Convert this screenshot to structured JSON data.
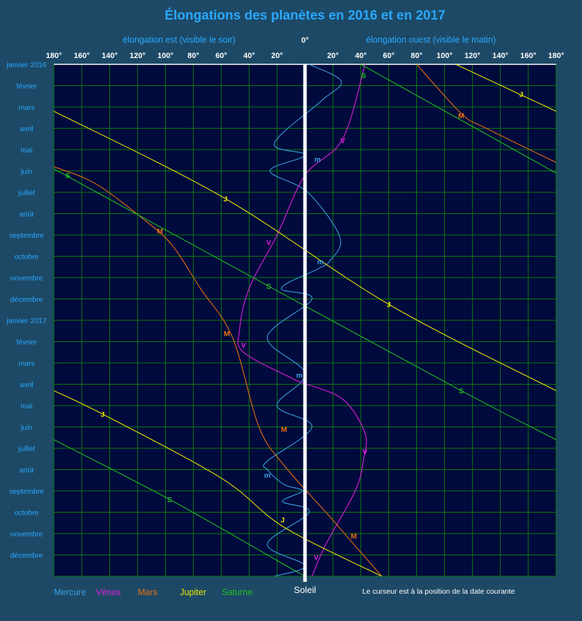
{
  "chart_data": {
    "type": "line",
    "title": "Élongations des planètes en 2016 et en 2017",
    "xlabel_left": "élongation est (visible le soir)",
    "xlabel_center": "0°",
    "xlabel_right": "élongation ouest (visible le matin)",
    "x_ticks": [
      "180°",
      "160°",
      "140°",
      "120°",
      "100°",
      "80°",
      "60°",
      "40°",
      "20°",
      "20°",
      "40°",
      "60°",
      "80°",
      "100°",
      "120°",
      "140°",
      "160°",
      "180°"
    ],
    "xlim": [
      -180,
      180
    ],
    "y_ticks": [
      "janvier 2016",
      "février",
      "mars",
      "avril",
      "mai",
      "juin",
      "juillet",
      "août",
      "septembre",
      "octobre",
      "novembre",
      "décembre",
      "janvier 2017",
      "février",
      "mars",
      "avril",
      "mai",
      "juin",
      "juillet",
      "août",
      "septembre",
      "octobre",
      "novembre",
      "décembre"
    ],
    "ylim_months": [
      0,
      24
    ],
    "grid": true,
    "sun_label": "Soleil",
    "footnote": "Le curseur est à la position de la date courante",
    "colors": {
      "background": "#1d4966",
      "plot": "#000a3c",
      "grid": "#0c7a0c",
      "title": "#2aa8ff",
      "axis_text": "#2aa8ff",
      "tick_text": "#ffffff",
      "sun": "#ffffff",
      "mercury": "#3aa0e0",
      "venus": "#e020e0",
      "mars": "#e87010",
      "jupiter": "#e8e800",
      "saturn": "#20c020"
    },
    "series": [
      {
        "key": "mercury",
        "name": "Mercure",
        "marker": "m",
        "color": "#3aa0e0",
        "points": [
          [
            3,
            0
          ],
          [
            26,
            0.8
          ],
          [
            12,
            1.7
          ],
          [
            -22,
            3.7
          ],
          [
            0,
            4.25
          ],
          [
            -25,
            5
          ],
          [
            2,
            6
          ],
          [
            25,
            8.1
          ],
          [
            18,
            9.2
          ],
          [
            9,
            9.6
          ],
          [
            -17,
            10.5
          ],
          [
            5,
            11
          ],
          [
            -27,
            12.8
          ],
          [
            0,
            14.5
          ],
          [
            -20,
            16
          ],
          [
            5,
            17
          ],
          [
            -27,
            18.6
          ],
          [
            -27,
            19
          ],
          [
            -15,
            19.7
          ],
          [
            -2,
            20
          ],
          [
            -16,
            20.5
          ],
          [
            3,
            21
          ],
          [
            -27,
            22.5
          ],
          [
            0,
            23.5
          ],
          [
            -22,
            24
          ]
        ],
        "markers": [
          [
            9,
            4.45
          ],
          [
            11,
            9.25
          ],
          [
            -4,
            14.55
          ],
          [
            -27,
            19.25
          ]
        ]
      },
      {
        "key": "venus",
        "name": "Vénus",
        "marker": "V",
        "color": "#e020e0",
        "points": [
          [
            43,
            0
          ],
          [
            27,
            3.5
          ],
          [
            0,
            5.2
          ],
          [
            -20,
            8
          ],
          [
            -40,
            10.5
          ],
          [
            -47,
            12.5
          ],
          [
            -44,
            13.5
          ],
          [
            -10,
            14.7
          ],
          [
            -3,
            14.9
          ],
          [
            27,
            15.7
          ],
          [
            43,
            17.3
          ],
          [
            42,
            18.5
          ],
          [
            36,
            20
          ],
          [
            15,
            22.5
          ],
          [
            5,
            24
          ]
        ],
        "markers": [
          [
            27,
            3.55
          ],
          [
            -26,
            8.35
          ],
          [
            -44,
            13.15
          ],
          [
            43,
            18.15
          ],
          [
            8,
            23.1
          ]
        ]
      },
      {
        "key": "mars",
        "name": "Mars",
        "marker": "M",
        "color": "#e87010",
        "points": [
          [
            -180,
            4.8
          ],
          [
            -150,
            5.6
          ],
          [
            -115,
            7.3
          ],
          [
            -95,
            8.5
          ],
          [
            -75,
            10.5
          ],
          [
            -52,
            12.8
          ],
          [
            -33,
            17
          ],
          [
            -15,
            18.8
          ],
          [
            15,
            21
          ],
          [
            35,
            22.5
          ],
          [
            55,
            24
          ]
        ],
        "markers": [
          [
            -104,
            7.8
          ],
          [
            -56,
            12.6
          ],
          [
            -15,
            17.1
          ],
          [
            35,
            22.1
          ]
        ]
      },
      {
        "key": "mars",
        "name": "Mars",
        "marker": "M",
        "color": "#e87010",
        "points": [
          [
            80,
            0
          ],
          [
            112,
            2.3
          ],
          [
            130,
            3
          ],
          [
            180,
            4.6
          ]
        ],
        "markers": [
          [
            112,
            2.4
          ]
        ]
      },
      {
        "key": "jupiter",
        "name": "Jupiter",
        "marker": "J",
        "color": "#e8e800",
        "points": [
          [
            -180,
            2.2
          ],
          [
            -57,
            6.3
          ],
          [
            60,
            11.25
          ],
          [
            180,
            15.3
          ]
        ],
        "markers": [
          [
            -57,
            6.3
          ],
          [
            60,
            11.25
          ]
        ]
      },
      {
        "key": "jupiter",
        "name": "Jupiter",
        "marker": "J",
        "color": "#e8e800",
        "points": [
          [
            108,
            0
          ],
          [
            180,
            2.2
          ]
        ],
        "markers": [
          [
            155,
            1.4
          ]
        ]
      },
      {
        "key": "jupiter",
        "name": "Jupiter",
        "marker": "J",
        "color": "#e8e800",
        "points": [
          [
            -180,
            15.3
          ],
          [
            -145,
            16.4
          ],
          [
            -60,
            19.4
          ],
          [
            -15,
            21.7
          ],
          [
            55,
            24
          ]
        ],
        "markers": [
          [
            -145,
            16.4
          ],
          [
            -16,
            21.35
          ]
        ]
      },
      {
        "key": "saturn",
        "name": "Saturne",
        "marker": "S",
        "color": "#20c020",
        "points": [
          [
            40,
            0
          ],
          [
            180,
            5.1
          ]
        ],
        "markers": [
          [
            42,
            0.5
          ]
        ]
      },
      {
        "key": "saturn",
        "name": "Saturne",
        "marker": "S",
        "color": "#20c020",
        "points": [
          [
            -180,
            4.9
          ],
          [
            -26,
            10.4
          ],
          [
            112,
            15.3
          ],
          [
            180,
            17.6
          ]
        ],
        "markers": [
          [
            -170,
            5.2
          ],
          [
            -26,
            10.4
          ],
          [
            112,
            15.3
          ]
        ]
      },
      {
        "key": "saturn",
        "name": "Saturne",
        "marker": "S",
        "color": "#20c020",
        "points": [
          [
            -180,
            17.6
          ],
          [
            -97,
            20.4
          ],
          [
            -19,
            23.3
          ],
          [
            0,
            24
          ]
        ],
        "markers": [
          [
            -97,
            20.4
          ]
        ]
      }
    ],
    "legend": [
      {
        "name": "Mercure",
        "color": "#3aa0e0"
      },
      {
        "name": "Vénus",
        "color": "#e020e0"
      },
      {
        "name": "Mars",
        "color": "#e87010"
      },
      {
        "name": "Jupiter",
        "color": "#e8e800"
      },
      {
        "name": "Saturne",
        "color": "#20c020"
      }
    ]
  }
}
